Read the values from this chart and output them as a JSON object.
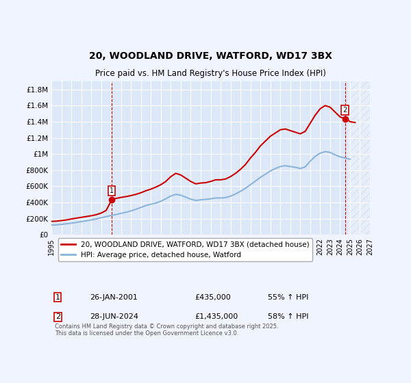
{
  "title": "20, WOODLAND DRIVE, WATFORD, WD17 3BX",
  "subtitle": "Price paid vs. HM Land Registry's House Price Index (HPI)",
  "background_color": "#f0f4ff",
  "plot_bg_color": "#dce8f8",
  "grid_color": "#ffffff",
  "red_color": "#cc0000",
  "blue_color": "#8ab4d8",
  "vline_color": "#cc0000",
  "ylim": [
    0,
    1900000
  ],
  "yticks": [
    0,
    200000,
    400000,
    600000,
    800000,
    1000000,
    1200000,
    1400000,
    1600000,
    1800000
  ],
  "ytick_labels": [
    "£0",
    "£200K",
    "£400K",
    "£600K",
    "£800K",
    "£1M",
    "£1.2M",
    "£1.4M",
    "£1.6M",
    "£1.8M"
  ],
  "xmin_year": 1995,
  "xmax_year": 2027,
  "xticks": [
    1995,
    1996,
    1997,
    1998,
    1999,
    2000,
    2001,
    2002,
    2003,
    2004,
    2005,
    2006,
    2007,
    2008,
    2009,
    2010,
    2011,
    2012,
    2013,
    2014,
    2015,
    2016,
    2017,
    2018,
    2019,
    2020,
    2021,
    2022,
    2023,
    2024,
    2025,
    2026,
    2027
  ],
  "purchase1_year": 2001.07,
  "purchase1_price": 435000,
  "purchase1_label": "1",
  "purchase2_year": 2024.49,
  "purchase2_price": 1435000,
  "purchase2_label": "2",
  "legend_entries": [
    "20, WOODLAND DRIVE, WATFORD, WD17 3BX (detached house)",
    "HPI: Average price, detached house, Watford"
  ],
  "table_rows": [
    {
      "num": "1",
      "date": "26-JAN-2001",
      "price": "£435,000",
      "hpi": "55% ↑ HPI"
    },
    {
      "num": "2",
      "date": "28-JUN-2024",
      "price": "£1,435,000",
      "hpi": "58% ↑ HPI"
    }
  ],
  "footer": "Contains HM Land Registry data © Crown copyright and database right 2025.\nThis data is licensed under the Open Government Licence v3.0.",
  "red_x": [
    1995.0,
    1995.5,
    1996.0,
    1996.5,
    1997.0,
    1997.5,
    1998.0,
    1998.5,
    1999.0,
    1999.5,
    2000.0,
    2000.5,
    2001.07,
    2001.5,
    2002.0,
    2002.5,
    2003.0,
    2003.5,
    2004.0,
    2004.5,
    2005.0,
    2005.5,
    2006.0,
    2006.5,
    2007.0,
    2007.5,
    2008.0,
    2008.5,
    2009.0,
    2009.5,
    2010.0,
    2010.5,
    2011.0,
    2011.5,
    2012.0,
    2012.5,
    2013.0,
    2013.5,
    2014.0,
    2014.5,
    2015.0,
    2015.5,
    2016.0,
    2016.5,
    2017.0,
    2017.5,
    2018.0,
    2018.5,
    2019.0,
    2019.5,
    2020.0,
    2020.5,
    2021.0,
    2021.5,
    2022.0,
    2022.5,
    2023.0,
    2023.5,
    2024.0,
    2024.49,
    2024.8,
    2025.0,
    2025.5
  ],
  "red_y": [
    165000,
    168000,
    175000,
    183000,
    195000,
    205000,
    215000,
    225000,
    235000,
    248000,
    268000,
    300000,
    435000,
    450000,
    462000,
    472000,
    485000,
    500000,
    520000,
    545000,
    565000,
    590000,
    620000,
    660000,
    720000,
    760000,
    740000,
    700000,
    660000,
    630000,
    640000,
    645000,
    660000,
    680000,
    680000,
    690000,
    720000,
    760000,
    810000,
    870000,
    950000,
    1020000,
    1100000,
    1160000,
    1220000,
    1260000,
    1300000,
    1310000,
    1290000,
    1270000,
    1250000,
    1280000,
    1380000,
    1480000,
    1560000,
    1600000,
    1580000,
    1520000,
    1460000,
    1435000,
    1420000,
    1400000,
    1390000
  ],
  "blue_x": [
    1995.0,
    1995.5,
    1996.0,
    1996.5,
    1997.0,
    1997.5,
    1998.0,
    1998.5,
    1999.0,
    1999.5,
    2000.0,
    2000.5,
    2001.0,
    2001.5,
    2002.0,
    2002.5,
    2003.0,
    2003.5,
    2004.0,
    2004.5,
    2005.0,
    2005.5,
    2006.0,
    2006.5,
    2007.0,
    2007.5,
    2008.0,
    2008.5,
    2009.0,
    2009.5,
    2010.0,
    2010.5,
    2011.0,
    2011.5,
    2012.0,
    2012.5,
    2013.0,
    2013.5,
    2014.0,
    2014.5,
    2015.0,
    2015.5,
    2016.0,
    2016.5,
    2017.0,
    2017.5,
    2018.0,
    2018.5,
    2019.0,
    2019.5,
    2020.0,
    2020.5,
    2021.0,
    2021.5,
    2022.0,
    2022.5,
    2023.0,
    2023.5,
    2024.0,
    2024.5,
    2025.0
  ],
  "blue_y": [
    120000,
    122000,
    128000,
    135000,
    143000,
    152000,
    162000,
    172000,
    183000,
    195000,
    210000,
    225000,
    238000,
    250000,
    265000,
    278000,
    295000,
    315000,
    338000,
    362000,
    378000,
    392000,
    415000,
    445000,
    480000,
    500000,
    490000,
    465000,
    440000,
    425000,
    432000,
    438000,
    445000,
    455000,
    455000,
    460000,
    478000,
    505000,
    538000,
    575000,
    620000,
    665000,
    710000,
    750000,
    790000,
    820000,
    845000,
    855000,
    845000,
    835000,
    820000,
    840000,
    910000,
    970000,
    1010000,
    1030000,
    1020000,
    990000,
    965000,
    950000,
    935000
  ]
}
